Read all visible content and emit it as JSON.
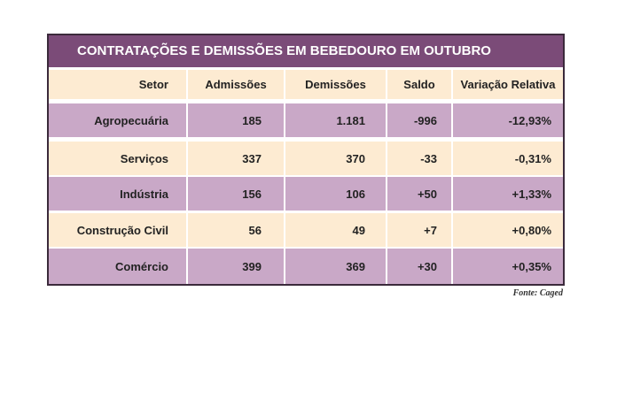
{
  "header": {
    "title": "CONTRATAÇÕES E DEMISSÕES EM BEBEDOURO EM OUTUBRO"
  },
  "table": {
    "columns": [
      "Setor",
      "Admissões",
      "Demissões",
      "Saldo",
      "Variação Relativa"
    ],
    "rows": [
      [
        "Agropecuária",
        "185",
        "1.181",
        "-996",
        "-12,93%"
      ],
      [
        "Serviços",
        "337",
        "370",
        "-33",
        "-0,31%"
      ],
      [
        "Indústria",
        "156",
        "106",
        "+50",
        "+1,33%"
      ],
      [
        "Construção Civil",
        "56",
        "49",
        "+7",
        "+0,80%"
      ],
      [
        "Comércio",
        "399",
        "369",
        "+30",
        "+0,35%"
      ]
    ]
  },
  "source": "Fonte: Caged"
}
